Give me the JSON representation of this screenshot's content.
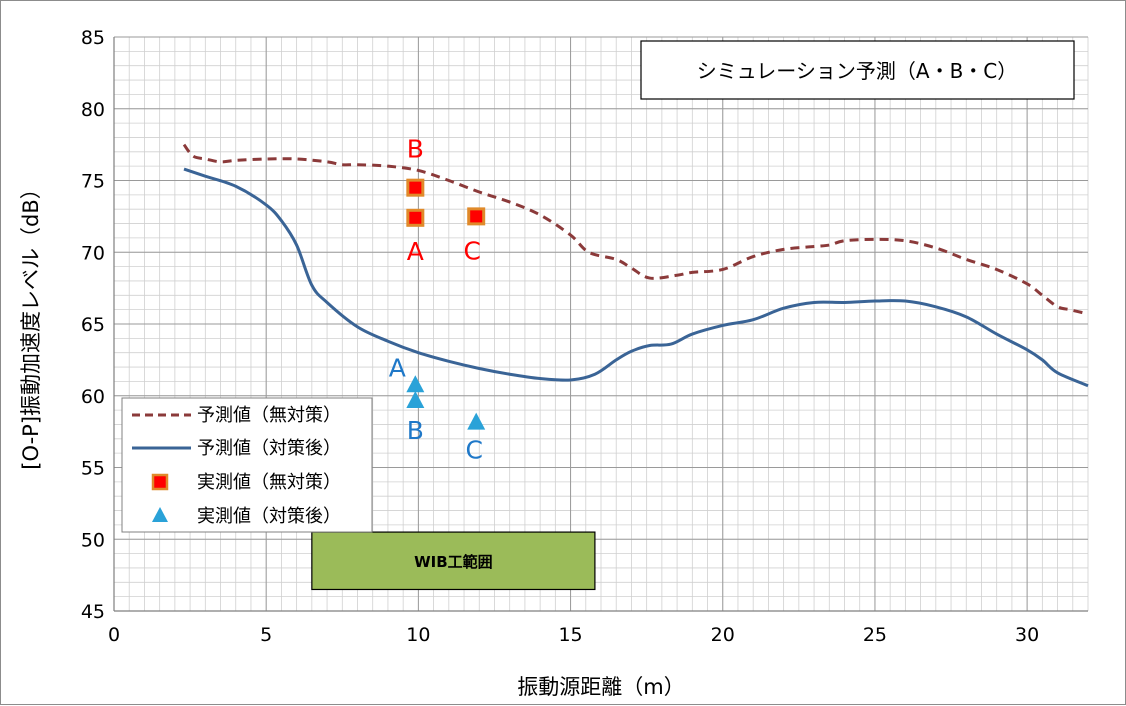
{
  "chart_data": {
    "type": "line",
    "title": "シミュレーション予測（A・B・C）",
    "xlabel": "振動源距離（m）",
    "ylabel": "[O-P]振動加速度レベル（dB）",
    "xlim": [
      0,
      32
    ],
    "ylim": [
      45,
      85
    ],
    "x_ticks": [
      0,
      5,
      10,
      15,
      20,
      25,
      30
    ],
    "y_ticks": [
      45,
      50,
      55,
      60,
      65,
      70,
      75,
      80,
      85
    ],
    "grid": true,
    "series": [
      {
        "name": "予測値（無対策）",
        "kind": "line",
        "style": "dashed",
        "color": "#8b3a3a",
        "x": [
          2.3,
          2.6,
          3.0,
          3.5,
          4.0,
          5.0,
          6.0,
          7.0,
          7.5,
          8.0,
          9.0,
          10.0,
          11.0,
          12.0,
          13.0,
          14.0,
          15.0,
          15.6,
          16.5,
          17.0,
          17.6,
          18.5,
          19.0,
          20.0,
          21.0,
          22.0,
          23.0,
          23.5,
          24.0,
          25.0,
          26.0,
          27.0,
          28.0,
          29.0,
          30.0,
          30.5,
          31.0,
          31.4,
          32.0
        ],
        "y": [
          77.5,
          76.7,
          76.5,
          76.3,
          76.4,
          76.5,
          76.5,
          76.3,
          76.1,
          76.1,
          76.0,
          75.7,
          75.0,
          74.2,
          73.5,
          72.6,
          71.2,
          70.0,
          69.5,
          68.9,
          68.2,
          68.4,
          68.6,
          68.8,
          69.7,
          70.2,
          70.4,
          70.5,
          70.8,
          70.9,
          70.8,
          70.3,
          69.5,
          68.8,
          67.8,
          67.0,
          66.2,
          66.0,
          65.7
        ]
      },
      {
        "name": "予測値（対策後）",
        "kind": "line",
        "style": "solid",
        "color": "#3a6496",
        "x": [
          2.3,
          3.0,
          4.0,
          5.0,
          5.5,
          6.0,
          6.5,
          7.0,
          8.0,
          9.0,
          10.0,
          11.0,
          12.0,
          13.0,
          14.0,
          15.0,
          15.8,
          16.5,
          17.0,
          17.6,
          18.3,
          19.0,
          20.0,
          21.0,
          22.0,
          23.0,
          24.0,
          25.0,
          26.0,
          27.0,
          28.0,
          29.0,
          30.0,
          30.5,
          31.0,
          32.0
        ],
        "y": [
          75.8,
          75.3,
          74.6,
          73.3,
          72.2,
          70.5,
          67.7,
          66.5,
          64.8,
          63.8,
          63.0,
          62.4,
          61.9,
          61.5,
          61.2,
          61.1,
          61.5,
          62.5,
          63.1,
          63.5,
          63.6,
          64.3,
          64.9,
          65.3,
          66.1,
          66.5,
          66.5,
          66.6,
          66.6,
          66.2,
          65.5,
          64.3,
          63.2,
          62.5,
          61.6,
          60.7
        ]
      },
      {
        "name": "実測値（無対策）",
        "kind": "scatter",
        "marker": "square",
        "color": "#ff0000",
        "edge": "#e08a2a",
        "x": [
          9.9,
          9.9,
          11.9
        ],
        "y": [
          74.5,
          72.4,
          72.5
        ],
        "labels": [
          "B",
          "A",
          "C"
        ]
      },
      {
        "name": "実測値（対策後）",
        "kind": "scatter",
        "marker": "triangle",
        "color": "#2aa2d8",
        "x": [
          9.9,
          9.9,
          11.9
        ],
        "y": [
          60.8,
          59.7,
          58.2
        ],
        "labels": [
          "A",
          "B",
          "C"
        ]
      }
    ],
    "legend": {
      "placement": "lower-left",
      "entries": [
        "予測値（無対策）",
        "予測値（対策後）",
        "実測値（無対策）",
        "実測値（対策後）"
      ]
    },
    "annotations": [
      {
        "text": "WIB工範囲",
        "kind": "box",
        "x_range": [
          6.5,
          15.8
        ],
        "y_range": [
          46.5,
          50.5
        ],
        "fill": "#9bbb59"
      }
    ]
  }
}
